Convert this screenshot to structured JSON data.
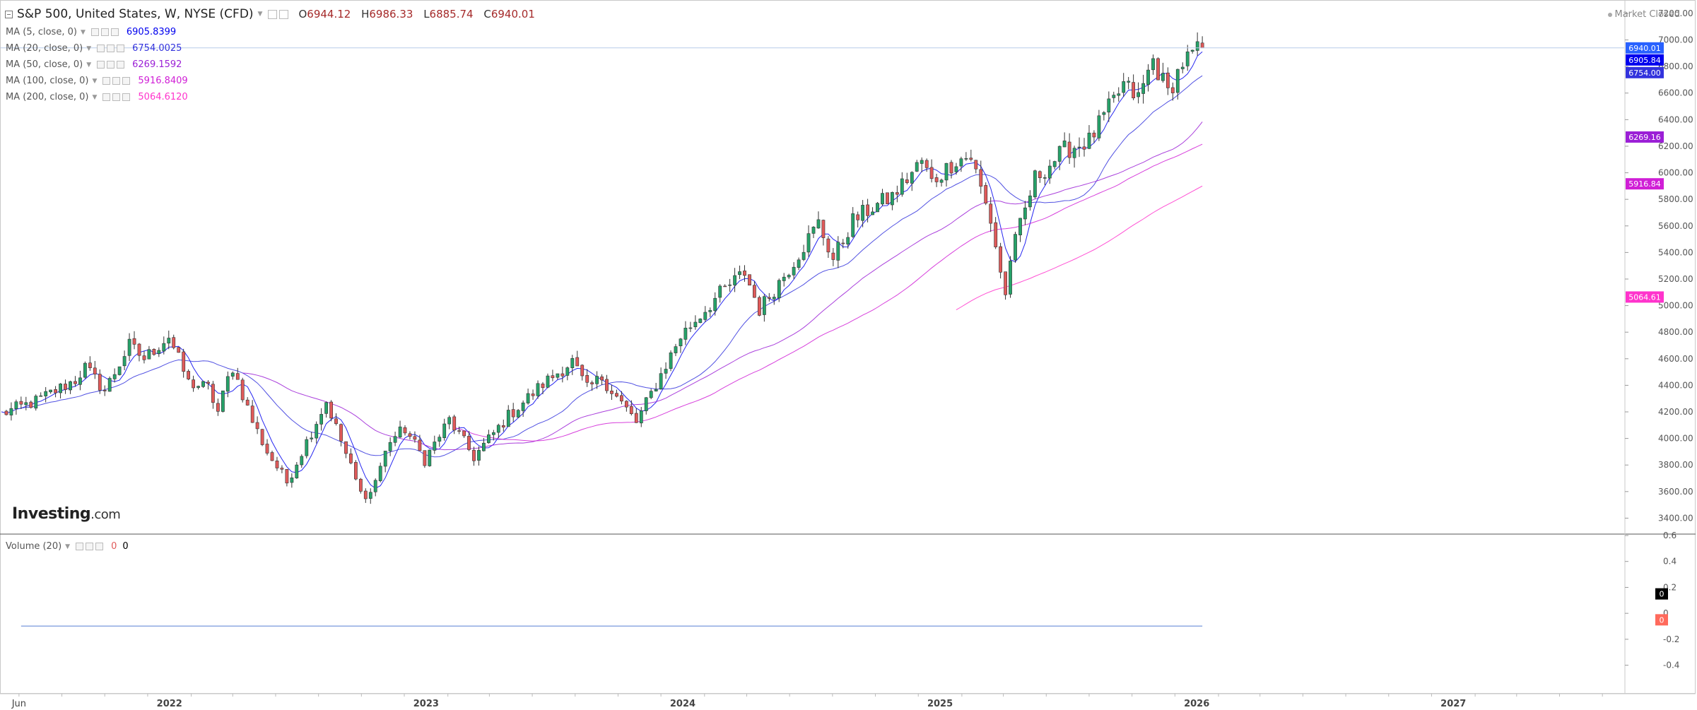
{
  "header": {
    "title": "S&P 500, United States, W, NYSE (CFD)",
    "ohlc": [
      {
        "label": "O",
        "value": "6944.12"
      },
      {
        "label": "H",
        "value": "6986.33"
      },
      {
        "label": "L",
        "value": "6885.74"
      },
      {
        "label": "C",
        "value": "6940.01"
      }
    ],
    "market_status": "Market Closed"
  },
  "logo": {
    "main": "Investing",
    "suffix": ".com"
  },
  "indicators": [
    {
      "label": "MA (5, close, 0)",
      "value": "6905.8399",
      "color": "#0000ee"
    },
    {
      "label": "MA (20, close, 0)",
      "value": "6754.0025",
      "color": "#3333dd"
    },
    {
      "label": "MA (50, close, 0)",
      "value": "6269.1592",
      "color": "#9b1fd6"
    },
    {
      "label": "MA (100, close, 0)",
      "value": "5916.8409",
      "color": "#d01fd6"
    },
    {
      "label": "MA (200, close, 0)",
      "value": "5064.6120",
      "color": "#ff33cc"
    }
  ],
  "volume": {
    "label": "Volume (20)",
    "v1": "0",
    "v2": "0"
  },
  "chart_data": {
    "type": "candlestick",
    "price_axis": {
      "ticks": [
        "3400.00",
        "3600.00",
        "3800.00",
        "4000.00",
        "4200.00",
        "4400.00",
        "4600.00",
        "4800.00",
        "5000.00",
        "5200.00",
        "5400.00",
        "5600.00",
        "5800.00",
        "6000.00",
        "6200.00",
        "6400.00",
        "6600.00",
        "6800.00",
        "7000.00",
        "7200.00"
      ],
      "range": [
        3280,
        7290
      ]
    },
    "volume_axis": {
      "ticks": [
        "0.6",
        "0.4",
        "0.2",
        "0",
        "-0.2",
        "-0.4"
      ],
      "range": [
        -0.62,
        0.6
      ]
    },
    "time_axis": {
      "labels": [
        "Jun",
        "2022",
        "2023",
        "2024",
        "2025",
        "2026",
        "2027"
      ],
      "dates": [
        "2021-06-01",
        "2022-01-01",
        "2023-01-01",
        "2024-01-01",
        "2025-01-01",
        "2026-01-01",
        "2027-01-01"
      ],
      "range": [
        "2021-05-06",
        "2027-09-01"
      ]
    },
    "price_labels": [
      {
        "value": "6940.01",
        "price": 6940.01,
        "color": "#2962ff"
      },
      {
        "value": "6905.84",
        "price": 6905.84,
        "color": "#0000ee"
      },
      {
        "value": "6754.00",
        "price": 6754.0,
        "color": "#3333dd"
      },
      {
        "value": "6269.16",
        "price": 6269.16,
        "color": "#9b1fd6"
      },
      {
        "value": "5916.84",
        "price": 5916.84,
        "color": "#d01fd6"
      },
      {
        "value": "5064.61",
        "price": 5064.61,
        "color": "#ff33cc"
      }
    ],
    "volume_labels": [
      {
        "value": "0",
        "color": "#000000"
      },
      {
        "value": "0",
        "color": "#ff6a5c"
      }
    ],
    "colors": {
      "up": "#26a269",
      "down": "#e05a5a"
    },
    "path": [
      [
        "2021-05-07",
        4185
      ],
      [
        "2021-06-25",
        4280
      ],
      [
        "2021-08-20",
        4440
      ],
      [
        "2021-09-03",
        4535
      ],
      [
        "2021-10-01",
        4360
      ],
      [
        "2021-11-05",
        4700
      ],
      [
        "2021-11-26",
        4600
      ],
      [
        "2021-12-31",
        4770
      ],
      [
        "2022-01-28",
        4420
      ],
      [
        "2022-02-25",
        4380
      ],
      [
        "2022-03-11",
        4200
      ],
      [
        "2022-03-31",
        4550
      ],
      [
        "2022-04-29",
        4130
      ],
      [
        "2022-05-20",
        3900
      ],
      [
        "2022-06-17",
        3670
      ],
      [
        "2022-07-08",
        3900
      ],
      [
        "2022-08-12",
        4280
      ],
      [
        "2022-09-30",
        3585
      ],
      [
        "2022-10-14",
        3590
      ],
      [
        "2022-11-11",
        3990
      ],
      [
        "2022-12-02",
        4070
      ],
      [
        "2022-12-30",
        3840
      ],
      [
        "2023-02-03",
        4140
      ],
      [
        "2023-03-10",
        3860
      ],
      [
        "2023-04-28",
        4170
      ],
      [
        "2023-06-16",
        4410
      ],
      [
        "2023-07-28",
        4580
      ],
      [
        "2023-08-18",
        4370
      ],
      [
        "2023-09-08",
        4460
      ],
      [
        "2023-10-27",
        4120
      ],
      [
        "2023-12-29",
        4770
      ],
      [
        "2024-02-23",
        5090
      ],
      [
        "2024-03-29",
        5250
      ],
      [
        "2024-04-19",
        4970
      ],
      [
        "2024-05-31",
        5280
      ],
      [
        "2024-07-12",
        5620
      ],
      [
        "2024-08-02",
        5350
      ],
      [
        "2024-08-30",
        5640
      ],
      [
        "2024-09-27",
        5740
      ],
      [
        "2024-10-25",
        5820
      ],
      [
        "2024-12-06",
        6090
      ],
      [
        "2024-12-20",
        5930
      ],
      [
        "2025-01-24",
        6100
      ],
      [
        "2025-02-14",
        6120
      ],
      [
        "2025-03-14",
        5640
      ],
      [
        "2025-04-04",
        5070
      ],
      [
        "2025-04-11",
        5360
      ],
      [
        "2025-05-16",
        5960
      ],
      [
        "2025-06-27",
        6170
      ],
      [
        "2025-08-01",
        6240
      ],
      [
        "2025-09-19",
        6660
      ],
      [
        "2025-10-10",
        6560
      ],
      [
        "2025-10-31",
        6850
      ],
      [
        "2025-11-21",
        6600
      ],
      [
        "2025-12-12",
        6830
      ],
      [
        "2026-01-09",
        6940
      ]
    ],
    "moving_averages": [
      {
        "name": "MA (5, close, 0)",
        "color": "#0000ee",
        "start": "2021-05-07",
        "lag_weeks": 2,
        "smooth_weeks": 5
      },
      {
        "name": "MA (20, close, 0)",
        "color": "#3333dd",
        "start": "2021-06-04",
        "lag_weeks": 9,
        "smooth_weeks": 20
      },
      {
        "name": "MA (50, close, 0)",
        "color": "#9b1fd6",
        "start": "2022-04-15",
        "lag_weeks": 24,
        "smooth_weeks": 40
      },
      {
        "name": "MA (100, close, 0)",
        "color": "#d01fd6",
        "start": "2023-02-10",
        "lag_weeks": 48,
        "smooth_weeks": 60
      },
      {
        "name": "MA (200, close, 0)",
        "color": "#ff33cc",
        "start": "2025-01-24",
        "lag_weeks": 95,
        "smooth_weeks": 100
      }
    ]
  }
}
